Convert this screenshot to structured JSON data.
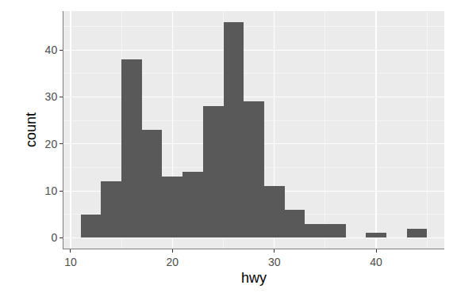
{
  "chart_data": {
    "type": "histogram",
    "bins": [
      11,
      13,
      15,
      17,
      19,
      21,
      23,
      25,
      27,
      29,
      31,
      33,
      35,
      37,
      39,
      41,
      43,
      45
    ],
    "values": [
      5,
      12,
      38,
      23,
      13,
      14,
      28,
      46,
      29,
      11,
      6,
      3,
      3,
      0,
      1,
      0,
      2
    ],
    "color": "#595959",
    "xlabel": "hwy",
    "ylabel": "count",
    "xlim": [
      9.3,
      46.7
    ],
    "xticks": [
      10,
      20,
      30,
      40
    ],
    "ylim": [
      -2.3,
      48.3
    ],
    "yticks": [
      0,
      10,
      20,
      30,
      40
    ],
    "grid": true
  }
}
